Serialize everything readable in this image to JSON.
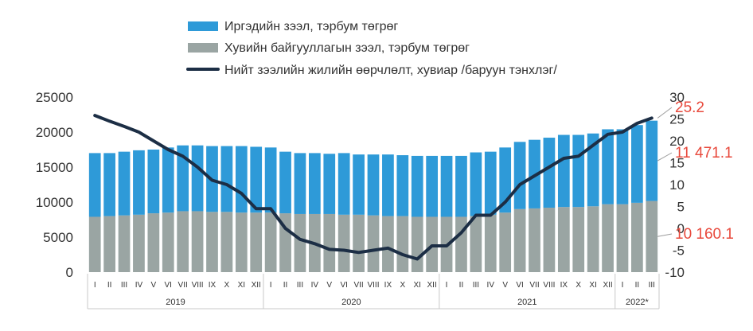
{
  "chart_data": {
    "type": "bar",
    "stacked": true,
    "legend": {
      "placement": "top",
      "items": [
        {
          "label": "Иргэдийн зээл, тэрбум төгрөг",
          "kind": "bar",
          "color": "#2e9ad8"
        },
        {
          "label": "Хувийн байгууллагын зээл, тэрбум төгрөг",
          "kind": "bar",
          "color": "#9aa5a3"
        },
        {
          "label": "Нийт зээлийн жилийн өөрчлөлт, хувиар /баруун тэнхлэг/",
          "kind": "line",
          "color": "#1c2e45"
        }
      ]
    },
    "categories": [
      "I",
      "II",
      "III",
      "IV",
      "V",
      "VI",
      "VII",
      "VIII",
      "IX",
      "X",
      "XI",
      "XII",
      "I",
      "II",
      "III",
      "IV",
      "V",
      "VI",
      "VII",
      "VIII",
      "IX",
      "X",
      "XI",
      "XII",
      "I",
      "II",
      "III",
      "IV",
      "V",
      "VI",
      "VII",
      "VIII",
      "IX",
      "X",
      "XI",
      "XII",
      "I",
      "II",
      "III"
    ],
    "year_groups": [
      {
        "label": "2019",
        "count": 12
      },
      {
        "label": "2020",
        "count": 12
      },
      {
        "label": "2021",
        "count": 12
      },
      {
        "label": "2022*",
        "count": 3
      }
    ],
    "series": [
      {
        "name": "Хувийн байгууллагын зээл, тэрбум төгрөг",
        "color": "#9aa5a3",
        "values": [
          7900,
          8000,
          8100,
          8200,
          8400,
          8500,
          8700,
          8700,
          8600,
          8600,
          8500,
          8500,
          8500,
          8400,
          8300,
          8300,
          8300,
          8200,
          8200,
          8100,
          8000,
          8000,
          7900,
          7900,
          7900,
          7900,
          8000,
          8200,
          8500,
          9000,
          9100,
          9200,
          9300,
          9300,
          9400,
          9700,
          9700,
          9900,
          10160.1
        ]
      },
      {
        "name": "Иргэдийн зээл, тэрбум төгрөг",
        "color": "#2e9ad8",
        "values": [
          9100,
          9000,
          9100,
          9200,
          9100,
          9300,
          9400,
          9400,
          9400,
          9400,
          9500,
          9400,
          9300,
          8800,
          8700,
          8700,
          8600,
          8800,
          8600,
          8700,
          8800,
          8700,
          8700,
          8700,
          8700,
          8700,
          9100,
          9000,
          9300,
          9600,
          9800,
          10000,
          10300,
          10300,
          10400,
          10700,
          10700,
          11100,
          11471.1
        ]
      }
    ],
    "line_series": {
      "name": "Нийт зээлийн жилийн өөрчлөлт, хувиар /баруун тэнхлэг/",
      "color": "#1c2e45",
      "values": [
        25.8,
        24.5,
        23.3,
        22.0,
        20.0,
        18.0,
        16.5,
        14.0,
        11.0,
        10.0,
        8.0,
        4.5,
        4.5,
        0,
        -2.5,
        -3.5,
        -4.8,
        -5.0,
        -5.5,
        -5.0,
        -4.5,
        -6.0,
        -7.0,
        -4.0,
        -4.0,
        -1.0,
        3.0,
        3.0,
        6.0,
        10.0,
        12.0,
        14.0,
        16.0,
        16.5,
        19.0,
        21.5,
        22.0,
        24.0,
        25.2
      ]
    },
    "y_left": {
      "ylim": [
        0,
        25000
      ],
      "ticks": [
        "0",
        "5000",
        "10000",
        "15000",
        "20000",
        "25000"
      ]
    },
    "y_right": {
      "ylim": [
        -10,
        30
      ],
      "ticks": [
        "-10",
        "-5",
        "0",
        "5",
        "10",
        "15",
        "20",
        "25",
        "30"
      ]
    },
    "annotations": [
      {
        "text": "25.2",
        "color": "#e8493c",
        "anchor_series": "line",
        "index": 38
      },
      {
        "text": "11 471.1",
        "color": "#e8493c",
        "anchor_series": "stack_mid_top",
        "index": 38
      },
      {
        "text": "10 160.1",
        "color": "#e8493c",
        "anchor_series": "stack_mid_bottom",
        "index": 38
      }
    ],
    "grid": false
  }
}
